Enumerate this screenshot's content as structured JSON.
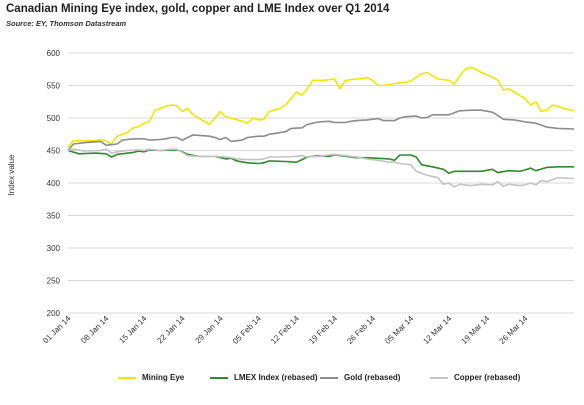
{
  "title": "Canadian Mining Eye index, gold, copper and LME Index over Q1 2014",
  "source": "Source: EY, Thomson Datastream",
  "chart_data": {
    "type": "line",
    "ylabel": "Index value",
    "xlabel": "",
    "ylim": [
      200,
      600
    ],
    "yticks": [
      200,
      250,
      300,
      350,
      400,
      450,
      500,
      550,
      600
    ],
    "grid": "horizontal",
    "legend_position": "bottom",
    "x_tick_labels": [
      "01 Jan 14",
      "08 Jan 14",
      "15 Jan 14",
      "22 Jan 14",
      "29 Jan 14",
      "05 Feb 14",
      "12 Feb 14",
      "19 Feb 14",
      "26 Feb 14",
      "05 Mar 14",
      "12 Mar 14",
      "19 Mar 14",
      "26 Mar 14"
    ],
    "x_days_range": [
      0,
      90
    ],
    "series": [
      {
        "name": "Mining Eye",
        "color": "#f2e600",
        "points": [
          [
            0,
            455
          ],
          [
            1,
            465
          ],
          [
            3,
            465
          ],
          [
            5,
            465
          ],
          [
            6,
            467
          ],
          [
            7,
            465
          ],
          [
            8,
            460
          ],
          [
            9,
            472
          ],
          [
            11,
            478
          ],
          [
            12,
            485
          ],
          [
            13,
            487
          ],
          [
            14,
            492
          ],
          [
            15,
            495
          ],
          [
            16,
            512
          ],
          [
            17,
            515
          ],
          [
            18,
            518
          ],
          [
            19,
            520
          ],
          [
            20,
            519
          ],
          [
            21,
            510
          ],
          [
            22,
            515
          ],
          [
            23,
            505
          ],
          [
            24,
            500
          ],
          [
            25,
            495
          ],
          [
            26,
            490
          ],
          [
            27,
            500
          ],
          [
            28,
            510
          ],
          [
            29,
            502
          ],
          [
            30,
            500
          ],
          [
            32,
            495
          ],
          [
            33,
            492
          ],
          [
            34,
            500
          ],
          [
            35,
            497
          ],
          [
            36,
            498
          ],
          [
            37,
            510
          ],
          [
            39,
            515
          ],
          [
            40,
            520
          ],
          [
            42,
            540
          ],
          [
            43,
            535
          ],
          [
            44,
            545
          ],
          [
            45,
            558
          ],
          [
            47,
            558
          ],
          [
            49,
            560
          ],
          [
            50,
            545
          ],
          [
            51,
            558
          ],
          [
            53,
            560
          ],
          [
            55,
            562
          ],
          [
            56,
            558
          ],
          [
            57,
            550
          ],
          [
            58,
            550
          ],
          [
            60,
            553
          ],
          [
            62,
            555
          ],
          [
            63,
            557
          ],
          [
            65,
            568
          ],
          [
            66,
            570
          ],
          [
            67,
            565
          ],
          [
            68,
            560
          ],
          [
            70,
            558
          ],
          [
            71,
            552
          ],
          [
            72,
            565
          ],
          [
            73,
            575
          ],
          [
            74,
            578
          ],
          [
            75,
            575
          ],
          [
            76,
            570
          ],
          [
            78,
            563
          ],
          [
            79,
            558
          ],
          [
            80,
            543
          ],
          [
            81,
            545
          ],
          [
            82,
            540
          ],
          [
            83,
            535
          ],
          [
            84,
            530
          ],
          [
            85,
            520
          ],
          [
            86,
            525
          ],
          [
            87,
            510
          ],
          [
            88,
            512
          ],
          [
            89,
            520
          ],
          [
            90,
            518
          ],
          [
            91,
            515
          ],
          [
            92,
            513
          ],
          [
            93,
            511
          ]
        ]
      },
      {
        "name": "LMEX Index (rebased)",
        "color": "#2e8b2e",
        "points": [
          [
            0,
            450
          ],
          [
            2,
            445
          ],
          [
            5,
            446
          ],
          [
            7,
            445
          ],
          [
            8,
            440
          ],
          [
            9,
            444
          ],
          [
            12,
            447
          ],
          [
            13,
            449
          ],
          [
            14,
            448
          ],
          [
            15,
            451
          ],
          [
            17,
            450
          ],
          [
            20,
            451
          ],
          [
            21,
            448
          ],
          [
            22,
            444
          ],
          [
            24,
            441
          ],
          [
            27,
            441
          ],
          [
            29,
            437
          ],
          [
            30,
            438
          ],
          [
            31,
            434
          ],
          [
            33,
            431
          ],
          [
            35,
            430
          ],
          [
            36,
            431
          ],
          [
            37,
            434
          ],
          [
            40,
            433
          ],
          [
            42,
            432
          ],
          [
            43,
            436
          ],
          [
            44,
            440
          ],
          [
            46,
            442
          ],
          [
            48,
            441
          ],
          [
            49,
            443
          ],
          [
            51,
            441
          ],
          [
            53,
            439
          ],
          [
            55,
            439
          ],
          [
            57,
            438
          ],
          [
            59,
            437
          ],
          [
            60,
            435
          ],
          [
            61,
            443
          ],
          [
            63,
            443
          ],
          [
            64,
            440
          ],
          [
            65,
            428
          ],
          [
            67,
            425
          ],
          [
            69,
            421
          ],
          [
            70,
            415
          ],
          [
            71,
            418
          ],
          [
            74,
            418
          ],
          [
            76,
            418
          ],
          [
            78,
            421
          ],
          [
            79,
            416
          ],
          [
            81,
            419
          ],
          [
            83,
            418
          ],
          [
            84,
            420
          ],
          [
            85,
            423
          ],
          [
            86,
            419
          ],
          [
            88,
            424
          ],
          [
            90,
            425
          ],
          [
            93,
            425
          ]
        ]
      },
      {
        "name": "Gold (rebased)",
        "color": "#8c8c8c",
        "points": [
          [
            0,
            450
          ],
          [
            1,
            460
          ],
          [
            3,
            462
          ],
          [
            6,
            464
          ],
          [
            7,
            458
          ],
          [
            9,
            460
          ],
          [
            10,
            466
          ],
          [
            12,
            468
          ],
          [
            14,
            468
          ],
          [
            15,
            466
          ],
          [
            17,
            467
          ],
          [
            18,
            468
          ],
          [
            19,
            470
          ],
          [
            20,
            470
          ],
          [
            21,
            466
          ],
          [
            22,
            470
          ],
          [
            23,
            474
          ],
          [
            26,
            472
          ],
          [
            27,
            470
          ],
          [
            28,
            467
          ],
          [
            29,
            470
          ],
          [
            30,
            464
          ],
          [
            32,
            466
          ],
          [
            33,
            470
          ],
          [
            35,
            472
          ],
          [
            36,
            472
          ],
          [
            37,
            475
          ],
          [
            40,
            479
          ],
          [
            41,
            484
          ],
          [
            43,
            485
          ],
          [
            44,
            490
          ],
          [
            46,
            494
          ],
          [
            48,
            495
          ],
          [
            49,
            493
          ],
          [
            51,
            493
          ],
          [
            52,
            495
          ],
          [
            53,
            496
          ],
          [
            55,
            497
          ],
          [
            57,
            499
          ],
          [
            58,
            496
          ],
          [
            60,
            496
          ],
          [
            61,
            500
          ],
          [
            62,
            502
          ],
          [
            64,
            503
          ],
          [
            65,
            500
          ],
          [
            66,
            501
          ],
          [
            67,
            505
          ],
          [
            70,
            505
          ],
          [
            72,
            511
          ],
          [
            74,
            512
          ],
          [
            76,
            512
          ],
          [
            78,
            509
          ],
          [
            79,
            504
          ],
          [
            80,
            498
          ],
          [
            82,
            497
          ],
          [
            84,
            494
          ],
          [
            86,
            492
          ],
          [
            88,
            486
          ],
          [
            90,
            484
          ],
          [
            93,
            483
          ]
        ]
      },
      {
        "name": "Copper (rebased)",
        "color": "#c4c4c4",
        "points": [
          [
            0,
            450
          ],
          [
            1,
            452
          ],
          [
            3,
            449
          ],
          [
            6,
            450
          ],
          [
            7,
            452
          ],
          [
            8,
            446
          ],
          [
            9,
            448
          ],
          [
            11,
            450
          ],
          [
            13,
            451
          ],
          [
            14,
            450
          ],
          [
            15,
            452
          ],
          [
            17,
            450
          ],
          [
            19,
            452
          ],
          [
            20,
            452
          ],
          [
            21,
            447
          ],
          [
            22,
            442
          ],
          [
            24,
            441
          ],
          [
            27,
            441
          ],
          [
            29,
            440
          ],
          [
            30,
            439
          ],
          [
            31,
            437
          ],
          [
            33,
            436
          ],
          [
            35,
            436
          ],
          [
            36,
            437
          ],
          [
            37,
            440
          ],
          [
            40,
            440
          ],
          [
            42,
            441
          ],
          [
            43,
            442
          ],
          [
            44,
            440
          ],
          [
            46,
            441
          ],
          [
            48,
            443
          ],
          [
            49,
            444
          ],
          [
            51,
            442
          ],
          [
            53,
            440
          ],
          [
            55,
            437
          ],
          [
            57,
            435
          ],
          [
            59,
            432
          ],
          [
            60,
            432
          ],
          [
            61,
            430
          ],
          [
            63,
            428
          ],
          [
            64,
            418
          ],
          [
            66,
            412
          ],
          [
            68,
            408
          ],
          [
            69,
            398
          ],
          [
            70,
            400
          ],
          [
            71,
            394
          ],
          [
            72,
            398
          ],
          [
            74,
            396
          ],
          [
            76,
            398
          ],
          [
            78,
            397
          ],
          [
            79,
            402
          ],
          [
            80,
            395
          ],
          [
            81,
            398
          ],
          [
            83,
            396
          ],
          [
            84,
            397
          ],
          [
            85,
            400
          ],
          [
            86,
            397
          ],
          [
            87,
            404
          ],
          [
            88,
            402
          ],
          [
            90,
            408
          ],
          [
            93,
            407
          ]
        ]
      }
    ]
  }
}
